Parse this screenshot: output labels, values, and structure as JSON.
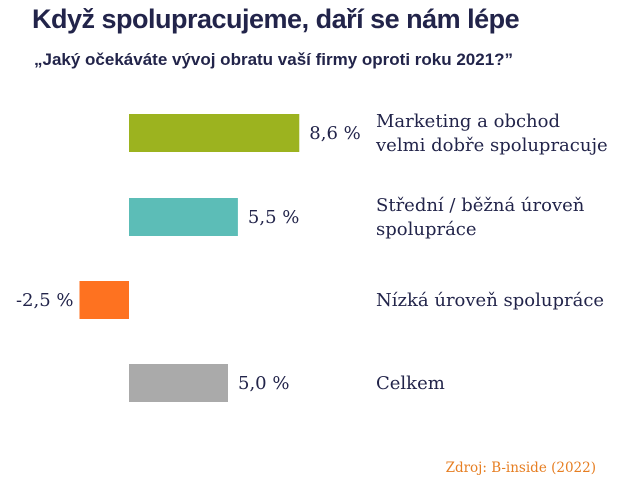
{
  "title": "Když spolupracujeme, daří se nám lépe",
  "subtitle": "„Jaký očekáváte vývoj obratu vaší firmy oproti roku 2021?”",
  "source": "Zdroj: B-inside (2022)",
  "chart_data": {
    "type": "bar",
    "orientation": "horizontal",
    "unit": "%",
    "grid": false,
    "legend": "none",
    "categories": [
      [
        "Marketing a obchod",
        "velmi dobře spolupracuje"
      ],
      [
        "Střední / běžná úroveň",
        "spolupráce"
      ],
      [
        "Nízká úroveň spolupráce"
      ],
      [
        "Celkem"
      ]
    ],
    "values": [
      8.6,
      5.5,
      -2.5,
      5.0
    ],
    "value_labels": [
      "8,6 %",
      "5,5 %",
      "-2,5 %",
      "5,0 %"
    ],
    "colors": [
      "#9cb31f",
      "#5cbdb7",
      "#fe7220",
      "#aaaaaa"
    ]
  }
}
